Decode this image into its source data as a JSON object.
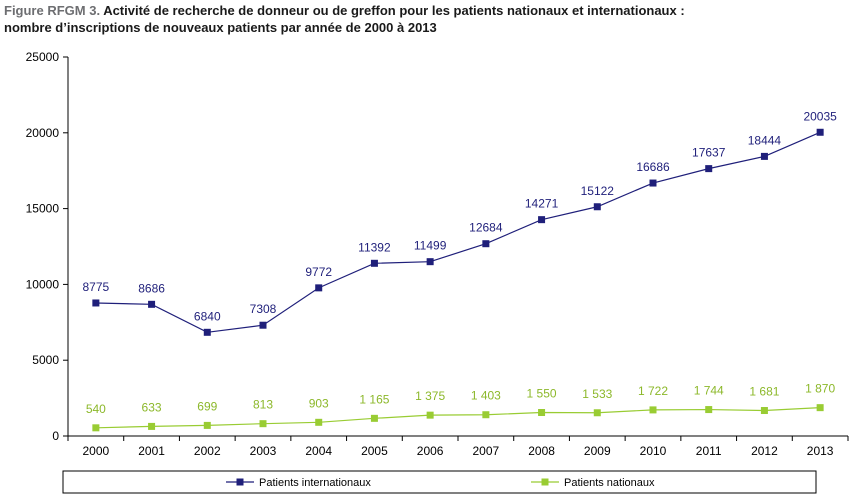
{
  "title": {
    "prefix": "Figure RFGM 3.",
    "line1": " Activité de recherche de donneur ou de greffon pour les patients nationaux et internationaux :",
    "line2": "nombre d’inscriptions de nouveaux patients par année de 2000 à 2013"
  },
  "colors": {
    "international": "#1f1f7a",
    "national": "#99cc33",
    "national_label": "#8cb82a"
  },
  "chart_data": {
    "type": "line",
    "categories": [
      "2000",
      "2001",
      "2002",
      "2003",
      "2004",
      "2005",
      "2006",
      "2007",
      "2008",
      "2009",
      "2010",
      "2011",
      "2012",
      "2013"
    ],
    "ylim": [
      0,
      25000
    ],
    "yticks": [
      "0",
      "5000",
      "10000",
      "15000",
      "20000",
      "25000"
    ],
    "grid": false,
    "legend_position": "bottom",
    "series": [
      {
        "name": "Patients internationaux",
        "values": [
          8775,
          8686,
          6840,
          7308,
          9772,
          11392,
          11499,
          12684,
          14271,
          15122,
          16686,
          17637,
          18444,
          20035
        ],
        "labels": [
          "8775",
          "8686",
          "6840",
          "7308",
          "9772",
          "11392",
          "11499",
          "12684",
          "14271",
          "15122",
          "16686",
          "17637",
          "18444",
          "20035"
        ]
      },
      {
        "name": "Patients nationaux",
        "values": [
          540,
          633,
          699,
          813,
          903,
          1165,
          1375,
          1403,
          1550,
          1533,
          1722,
          1744,
          1681,
          1870
        ],
        "labels": [
          "540",
          "633",
          "699",
          "813",
          "903",
          "1 165",
          "1 375",
          "1 403",
          "1 550",
          "1 533",
          "1 722",
          "1 744",
          "1 681",
          "1 870"
        ]
      }
    ]
  }
}
